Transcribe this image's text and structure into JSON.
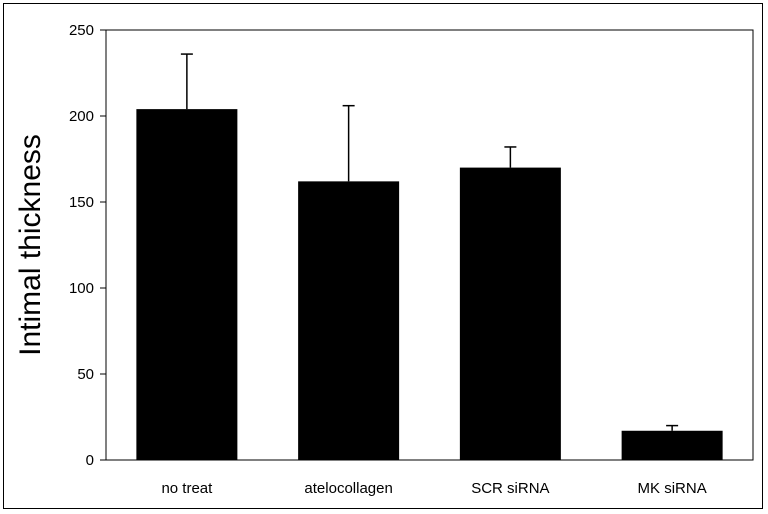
{
  "chart_data": {
    "type": "bar",
    "title": "",
    "xlabel": "",
    "ylabel": "Intimal thickness",
    "categories": [
      "no treat",
      "atelocollagen",
      "SCR siRNA",
      "MK siRNA"
    ],
    "values": [
      204,
      162,
      170,
      17
    ],
    "error_plus": [
      32,
      44,
      12,
      3
    ],
    "ylim": [
      0,
      250
    ],
    "yticks": [
      0,
      50,
      100,
      150,
      200,
      250
    ],
    "grid": false,
    "legend": "none",
    "bar_color": "#000000"
  }
}
